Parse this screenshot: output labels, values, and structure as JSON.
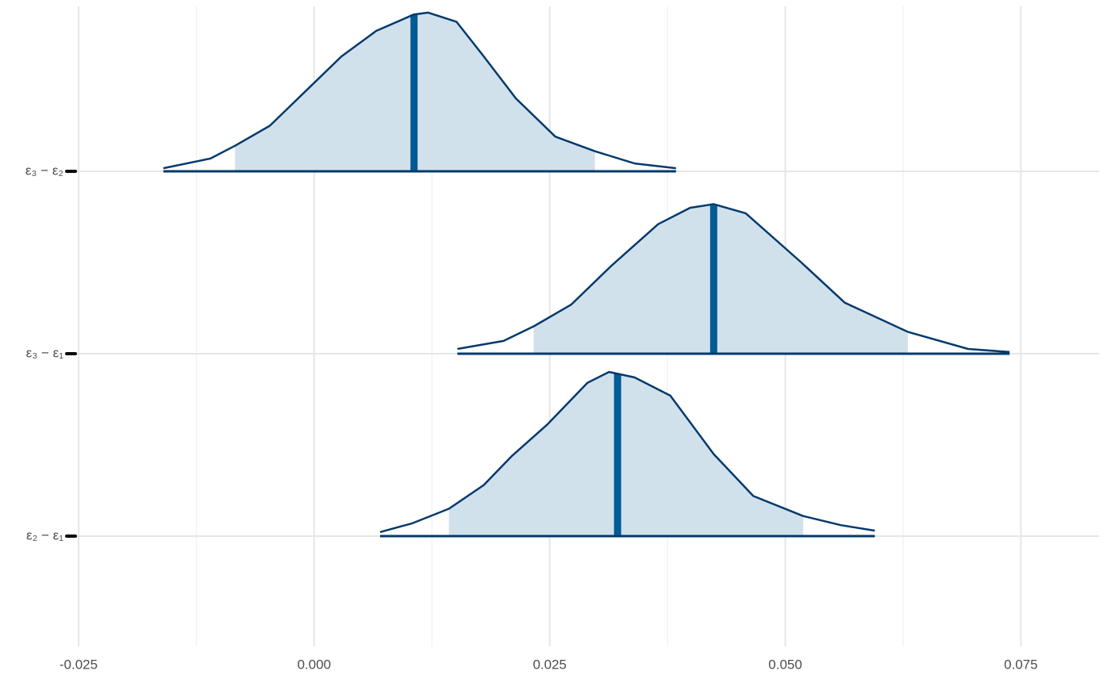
{
  "chart_data": {
    "type": "ridgeline",
    "categories": [
      "ε₃ − ε₂",
      "ε₃ − ε₁",
      "ε₂ − ε₁"
    ],
    "series": [
      {
        "x": [
          -0.016,
          -0.011,
          -0.0084,
          -0.0047,
          -0.0009,
          0.0029,
          0.0066,
          0.0106,
          0.0121,
          0.0151,
          0.018,
          0.0214,
          0.0256,
          0.0298,
          0.034,
          0.0384
        ],
        "values": [
          0.017,
          0.07,
          0.14,
          0.25,
          0.44,
          0.63,
          0.77,
          0.86,
          0.87,
          0.82,
          0.63,
          0.4,
          0.19,
          0.11,
          0.043,
          0.017
        ],
        "interval": [
          -0.0084,
          0.0298
        ],
        "median": 0.0106
      },
      {
        "x": [
          0.0152,
          0.0201,
          0.0233,
          0.0273,
          0.0315,
          0.0365,
          0.0399,
          0.0424,
          0.0458,
          0.0517,
          0.0563,
          0.063,
          0.0694,
          0.0738
        ],
        "values": [
          0.026,
          0.07,
          0.15,
          0.27,
          0.48,
          0.71,
          0.8,
          0.82,
          0.77,
          0.5,
          0.28,
          0.12,
          0.026,
          0.009
        ],
        "interval": [
          0.0233,
          0.063
        ],
        "median": 0.0424
      },
      {
        "x": [
          0.007,
          0.0104,
          0.0143,
          0.018,
          0.021,
          0.0247,
          0.029,
          0.0313,
          0.034,
          0.0378,
          0.0424,
          0.0466,
          0.0519,
          0.0559,
          0.0595
        ],
        "values": [
          0.022,
          0.07,
          0.15,
          0.28,
          0.44,
          0.61,
          0.84,
          0.9,
          0.87,
          0.77,
          0.45,
          0.22,
          0.11,
          0.06,
          0.03
        ],
        "interval": [
          0.0143,
          0.0519
        ],
        "median": 0.0322
      }
    ],
    "xlim": [
      -0.025,
      0.0833
    ],
    "xticks": [
      {
        "value": -0.025,
        "label": "-0.025"
      },
      {
        "value": 0,
        "label": "0.000"
      },
      0.025,
      {
        "value": 0.05,
        "label": "0.050"
      },
      0.075
    ],
    "minor_xticks": [
      -0.0125,
      0.0125,
      0.0375,
      0.0625
    ],
    "grid": true,
    "fill_color": "#d1e1ec",
    "line_color": "#03396c",
    "median_color": "#005b96"
  }
}
